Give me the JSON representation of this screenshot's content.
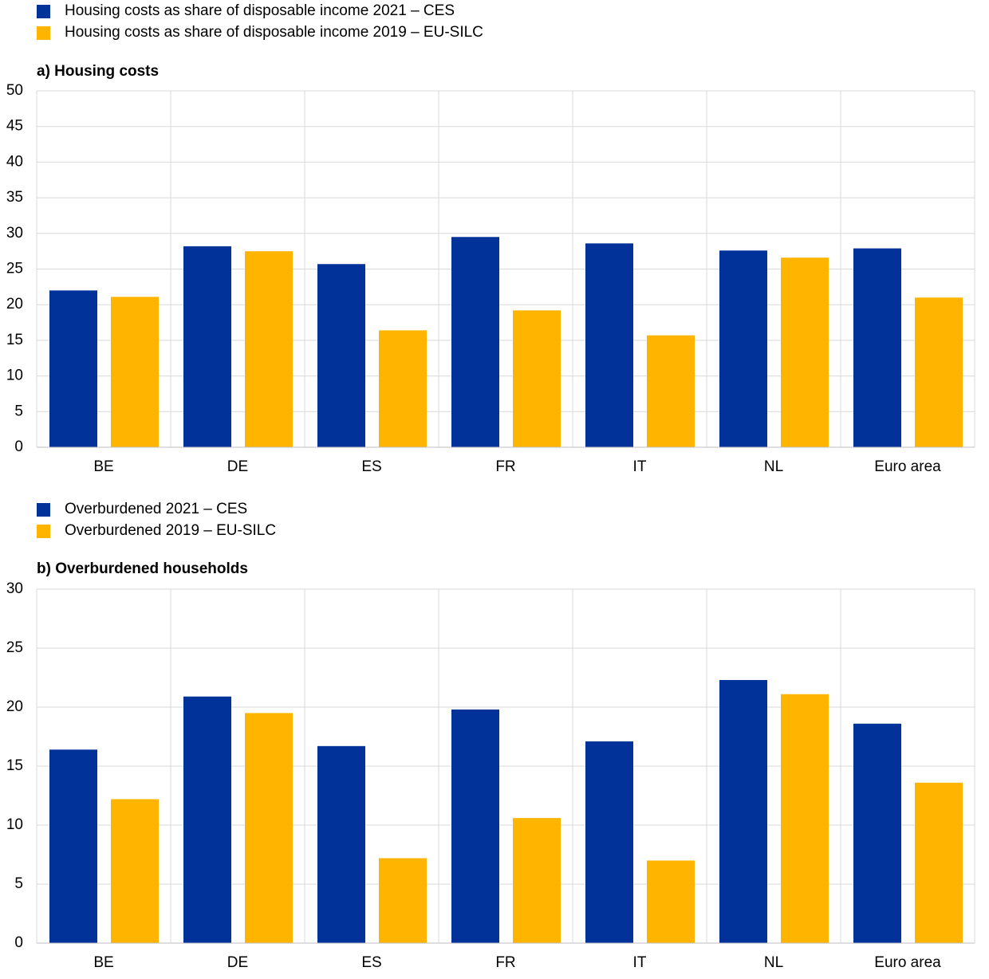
{
  "chart_data": [
    {
      "type": "bar",
      "title": "a) Housing costs",
      "categories": [
        "BE",
        "DE",
        "ES",
        "FR",
        "IT",
        "NL",
        "Euro area"
      ],
      "series": [
        {
          "name": "Housing costs as share of disposable income 2021 – CES",
          "color": "#003299",
          "values": [
            22.0,
            28.2,
            25.7,
            29.5,
            28.6,
            27.6,
            27.9
          ]
        },
        {
          "name": "Housing costs as share of disposable income 2019 – EU-SILC",
          "color": "#ffb400",
          "values": [
            21.1,
            27.5,
            16.4,
            19.2,
            15.7,
            26.6,
            21.0
          ]
        }
      ],
      "ylim": [
        0,
        50
      ],
      "yticks": [
        0,
        5,
        10,
        15,
        20,
        25,
        30,
        35,
        40,
        45,
        50
      ],
      "grid": true,
      "legend": "top"
    },
    {
      "type": "bar",
      "title": "b) Overburdened households",
      "categories": [
        "BE",
        "DE",
        "ES",
        "FR",
        "IT",
        "NL",
        "Euro area"
      ],
      "series": [
        {
          "name": "Overburdened 2021 – CES",
          "color": "#003299",
          "values": [
            16.4,
            20.9,
            16.7,
            19.8,
            17.1,
            22.3,
            18.6
          ]
        },
        {
          "name": "Overburdened 2019 – EU-SILC",
          "color": "#ffb400",
          "values": [
            12.2,
            19.5,
            7.2,
            10.6,
            7.0,
            21.1,
            13.6
          ]
        }
      ],
      "ylim": [
        0,
        30
      ],
      "yticks": [
        0,
        5,
        10,
        15,
        20,
        25,
        30
      ],
      "grid": true,
      "legend": "top"
    }
  ]
}
